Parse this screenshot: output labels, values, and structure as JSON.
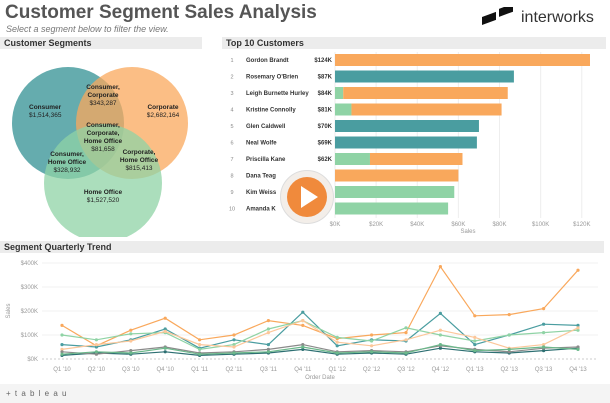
{
  "header": {
    "title": "Customer Segment Sales Analysis",
    "subtitle": "Select a segment below to filter the view.",
    "logo_text": "interworks"
  },
  "segments_panel": {
    "title": "Customer Segments",
    "regions": [
      {
        "id": "consumer",
        "name": "Consumer",
        "value": "$1,514,365"
      },
      {
        "id": "consumer-corporate",
        "name": "Consumer,\nCorporate",
        "value": "$343,287"
      },
      {
        "id": "corporate",
        "name": "Corporate",
        "value": "$2,682,164"
      },
      {
        "id": "all-three",
        "name": "Consumer,\nCorporate,\nHome Office",
        "value": "$81,658"
      },
      {
        "id": "consumer-home",
        "name": "Consumer,\nHome Office",
        "value": "$328,932"
      },
      {
        "id": "corporate-home",
        "name": "Corporate,\nHome Office",
        "value": "$815,413"
      },
      {
        "id": "home-office",
        "name": "Home Office",
        "value": "$1,527,520"
      }
    ],
    "colors": {
      "consumer": "#4a9da0",
      "corporate": "#f9a85c",
      "home_office": "#8fd3a5"
    }
  },
  "top_customers_panel": {
    "title": "Top 10 Customers",
    "axis_label": "Sales",
    "ticks": [
      "$0K",
      "$20K",
      "$40K",
      "$60K",
      "$80K",
      "$100K",
      "$120K"
    ],
    "customers": [
      {
        "rank": "1",
        "name": "Gordon Brandt",
        "label": "$124K"
      },
      {
        "rank": "2",
        "name": "Rosemary O'Brien",
        "label": "$87K"
      },
      {
        "rank": "3",
        "name": "Leigh Burnette Hurley",
        "label": "$84K"
      },
      {
        "rank": "4",
        "name": "Kristine Connolly",
        "label": "$81K"
      },
      {
        "rank": "5",
        "name": "Glen Caldwell",
        "label": "$70K"
      },
      {
        "rank": "6",
        "name": "Neal Wolfe",
        "label": "$69K"
      },
      {
        "rank": "7",
        "name": "Priscilla Kane",
        "label": "$62K"
      },
      {
        "rank": "8",
        "name": "Dana Teag",
        "label": ""
      },
      {
        "rank": "9",
        "name": "Kim Weiss",
        "label": ""
      },
      {
        "rank": "10",
        "name": "Amanda K",
        "label": ""
      }
    ]
  },
  "trend_panel": {
    "title": "Segment Quarterly Trend"
  },
  "chart_data": [
    {
      "type": "bar",
      "title": "Top 10 Customers",
      "xlabel": "Sales",
      "xlim": [
        0,
        124000
      ],
      "categories": [
        "Gordon Brandt",
        "Rosemary O'Brien",
        "Leigh Burnette Hurley",
        "Kristine Connolly",
        "Glen Caldwell",
        "Neal Wolfe",
        "Priscilla Kane",
        "Dana Teag",
        "Kim Weiss",
        "Amanda K"
      ],
      "series": [
        {
          "color": "#8fd3a5",
          "values": [
            0,
            0,
            4000,
            8000,
            0,
            0,
            17000,
            0,
            0,
            0
          ]
        },
        {
          "color": "#4a9da0",
          "values": [
            0,
            87000,
            0,
            0,
            70000,
            69000,
            0,
            0,
            0,
            0
          ]
        },
        {
          "color": "#f9a85c",
          "values": [
            124000,
            0,
            80000,
            73000,
            0,
            0,
            45000,
            60000,
            0,
            0
          ]
        },
        {
          "color": "#8fd3a5",
          "values": [
            0,
            0,
            0,
            0,
            0,
            0,
            0,
            0,
            58000,
            55000
          ]
        }
      ]
    },
    {
      "type": "line",
      "title": "Segment Quarterly Trend",
      "xlabel": "Order Date",
      "ylabel": "Sales",
      "ylim": [
        0,
        400000
      ],
      "yticks": [
        "$0K",
        "$100K",
        "$200K",
        "$300K",
        "$400K"
      ],
      "categories": [
        "Q1 '10",
        "Q2 '10",
        "Q3 '10",
        "Q4 '10",
        "Q1 '11",
        "Q2 '11",
        "Q3 '11",
        "Q4 '11",
        "Q1 '12",
        "Q2 '12",
        "Q3 '12",
        "Q4 '12",
        "Q1 '13",
        "Q2 '13",
        "Q3 '13",
        "Q4 '13"
      ],
      "series": [
        {
          "color": "#f9a85c",
          "values": [
            140000,
            55000,
            120000,
            170000,
            80000,
            100000,
            160000,
            140000,
            85000,
            100000,
            110000,
            385000,
            180000,
            185000,
            210000,
            370000
          ]
        },
        {
          "color": "#4a9da0",
          "values": [
            60000,
            50000,
            80000,
            125000,
            45000,
            80000,
            60000,
            195000,
            55000,
            80000,
            75000,
            190000,
            60000,
            100000,
            145000,
            140000
          ]
        },
        {
          "color": "#8fd3a5",
          "values": [
            100000,
            80000,
            105000,
            110000,
            40000,
            60000,
            125000,
            160000,
            90000,
            75000,
            130000,
            100000,
            75000,
            100000,
            110000,
            120000
          ]
        },
        {
          "color": "#fcc79a",
          "values": [
            40000,
            60000,
            75000,
            115000,
            60000,
            50000,
            110000,
            160000,
            70000,
            55000,
            80000,
            120000,
            90000,
            45000,
            60000,
            130000
          ]
        },
        {
          "color": "#2d6f72",
          "values": [
            15000,
            25000,
            20000,
            30000,
            15000,
            20000,
            25000,
            40000,
            20000,
            25000,
            20000,
            45000,
            30000,
            25000,
            35000,
            45000
          ]
        },
        {
          "color": "#8a8a8a",
          "values": [
            30000,
            20000,
            35000,
            50000,
            25000,
            30000,
            40000,
            60000,
            30000,
            35000,
            30000,
            55000,
            40000,
            30000,
            45000,
            50000
          ]
        },
        {
          "color": "#6bb88a",
          "values": [
            20000,
            30000,
            25000,
            45000,
            20000,
            25000,
            30000,
            50000,
            25000,
            30000,
            25000,
            60000,
            35000,
            40000,
            50000,
            40000
          ]
        }
      ]
    }
  ],
  "footer": {
    "brand": "+ t a b l e a u"
  }
}
